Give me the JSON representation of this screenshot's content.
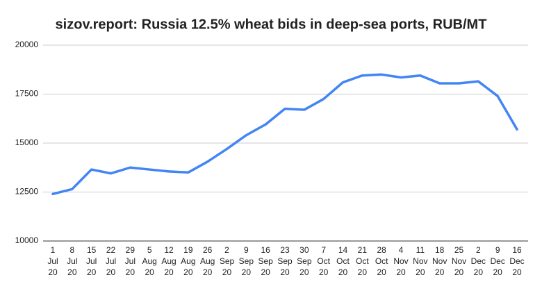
{
  "chart_data": {
    "type": "line",
    "title": "sizov.report: Russia 12.5% wheat bids in deep-sea ports, RUB/MT",
    "categories": [
      "1 Jul 20",
      "8 Jul 20",
      "15 Jul 20",
      "22 Jul 20",
      "29 Jul 20",
      "5 Aug 20",
      "12 Aug 20",
      "19 Aug 20",
      "26 Aug 20",
      "2 Sep 20",
      "9 Sep 20",
      "16 Sep 20",
      "23 Sep 20",
      "30 Sep 20",
      "7 Oct 20",
      "14 Oct 20",
      "21 Oct 20",
      "28 Oct 20",
      "4 Nov 20",
      "11 Nov 20",
      "18 Nov 20",
      "25 Nov 20",
      "2 Dec 20",
      "9 Dec 20",
      "16 Dec 20"
    ],
    "values": [
      12400,
      12650,
      13650,
      13450,
      13750,
      13650,
      13550,
      13500,
      14050,
      14700,
      15400,
      15950,
      16750,
      16700,
      17250,
      18100,
      18450,
      18500,
      18350,
      18450,
      18050,
      18050,
      18150,
      17400,
      15700
    ],
    "color": "#4285f4",
    "ylim": [
      10000,
      20000
    ],
    "yticks": [
      10000,
      12500,
      15000,
      17500,
      20000
    ],
    "grid": true
  }
}
